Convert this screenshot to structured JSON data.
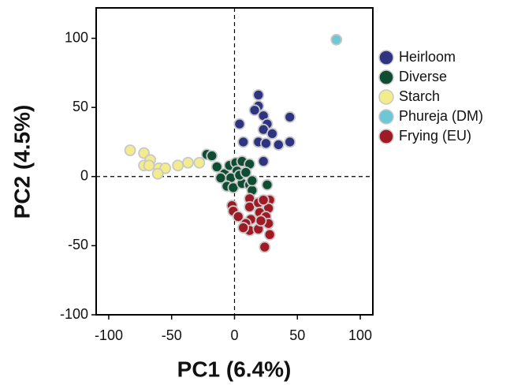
{
  "chart_data": {
    "type": "scatter",
    "xlabel": "PC1 (6.4%)",
    "ylabel": "PC2 (4.5%)",
    "xlim": [
      -110,
      110
    ],
    "ylim": [
      -100,
      122
    ],
    "xticks": [
      -100,
      -50,
      0,
      50,
      100
    ],
    "yticks": [
      -100,
      -50,
      0,
      50,
      100
    ],
    "zero_lines": true,
    "legend": "right",
    "series": [
      {
        "name": "Heirloom",
        "color": "#2e3480",
        "x": [
          19,
          19,
          23,
          16,
          26,
          4,
          44,
          23,
          30,
          7,
          19,
          25,
          35,
          44,
          23
        ],
        "values": [
          59,
          51,
          44,
          48,
          38,
          38,
          43,
          34,
          31,
          25,
          25,
          24,
          23,
          25,
          11
        ]
      },
      {
        "name": "Diverse",
        "color": "#0f4d33",
        "x": [
          -22,
          -18,
          -14,
          -8,
          -4,
          1,
          6,
          12,
          2,
          -3,
          -6,
          -1,
          6,
          4,
          12,
          14,
          26,
          -11,
          9,
          14
        ],
        "values": [
          16,
          15,
          7,
          2,
          8,
          10,
          11,
          9,
          4,
          -1,
          -7,
          -8,
          -5,
          1,
          -6,
          -10,
          -6,
          -1,
          3,
          -3
        ]
      },
      {
        "name": "Starch",
        "color": "#f2ec8c",
        "x": [
          -83,
          -72,
          -67,
          -72,
          -68,
          -60,
          -55,
          -61,
          -45,
          -37,
          -28
        ],
        "values": [
          19,
          17,
          12,
          8,
          8,
          6,
          6,
          2,
          8,
          10,
          10
        ]
      },
      {
        "name": "Phureja (DM)",
        "color": "#6cc8d4",
        "x": [
          81
        ],
        "values": [
          99
        ]
      },
      {
        "name": "Frying (EU)",
        "color": "#a01a25",
        "x": [
          -2,
          -1,
          3,
          12,
          12,
          19,
          28,
          27,
          20,
          25,
          27,
          13,
          9,
          12,
          7,
          19,
          28,
          24,
          21,
          23
        ],
        "values": [
          -21,
          -25,
          -29,
          -16,
          -22,
          -19,
          -17,
          -23,
          -26,
          -29,
          -34,
          -31,
          -34,
          -39,
          -37,
          -38,
          -42,
          -51,
          -32,
          -17
        ]
      }
    ]
  }
}
